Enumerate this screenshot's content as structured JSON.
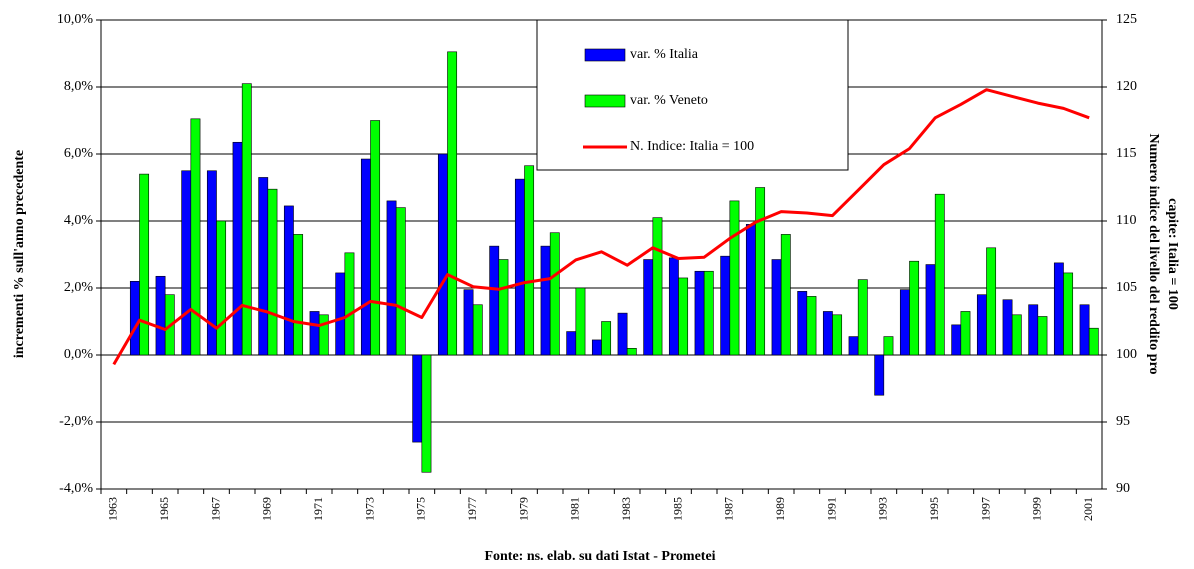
{
  "chart_data": {
    "type": "bar",
    "ylabel": "incrementi % sull'anno precedente",
    "y2label": [
      "Numero indice del livello del reddito pro",
      "capite: Italia = 100"
    ],
    "source": "Fonte: ns. elab. su dati Istat - Prometei",
    "categories": [
      "1963",
      null,
      "1965",
      null,
      "1967",
      null,
      "1969",
      null,
      "1971",
      null,
      "1973",
      null,
      "1975",
      null,
      "1977",
      null,
      "1979",
      null,
      "1981",
      null,
      "1983",
      null,
      "1985",
      null,
      "1987",
      null,
      "1989",
      null,
      "1991",
      null,
      "1993",
      null,
      "1995",
      null,
      "1997",
      null,
      "1999",
      null,
      "2001"
    ],
    "series": [
      {
        "name": "var. % Italia",
        "color": "#0000ff",
        "values": [
          null,
          2.2,
          2.35,
          5.5,
          5.5,
          6.35,
          5.3,
          4.45,
          1.3,
          2.45,
          5.85,
          4.6,
          -2.6,
          6.0,
          1.95,
          3.25,
          5.25,
          3.25,
          0.7,
          0.45,
          1.25,
          2.85,
          2.9,
          2.5,
          2.95,
          3.9,
          2.85,
          1.9,
          1.3,
          0.55,
          -1.2,
          1.95,
          2.7,
          0.9,
          1.8,
          1.65,
          1.5,
          2.75,
          1.5
        ]
      },
      {
        "name": "var. % Veneto",
        "color": "#00ff00",
        "values": [
          null,
          5.4,
          1.8,
          7.05,
          4.0,
          8.1,
          4.95,
          3.6,
          1.2,
          3.05,
          7.0,
          4.4,
          -3.5,
          9.05,
          1.5,
          2.85,
          5.65,
          3.65,
          2.0,
          1.0,
          0.2,
          4.1,
          2.3,
          2.5,
          4.6,
          5.0,
          3.6,
          1.75,
          1.2,
          2.25,
          0.55,
          2.8,
          4.8,
          1.3,
          3.2,
          1.2,
          1.15,
          2.45,
          0.8
        ]
      },
      {
        "name": "N. Indice: Italia = 100",
        "color": "#ff0000",
        "type": "line",
        "axis": "y2",
        "values": [
          99.3,
          102.6,
          101.9,
          103.4,
          102.0,
          103.7,
          103.2,
          102.5,
          102.2,
          102.8,
          104.0,
          103.7,
          102.8,
          106.0,
          105.1,
          104.9,
          105.4,
          105.7,
          107.1,
          107.7,
          106.7,
          108.0,
          107.2,
          107.3,
          108.7,
          109.9,
          110.7,
          110.6,
          110.4,
          112.3,
          114.2,
          115.4,
          117.7,
          118.7,
          119.8,
          119.3,
          118.8,
          118.4,
          117.7
        ]
      }
    ],
    "ylim": [
      -4,
      10
    ],
    "yticks": [
      {
        "value": -4,
        "label": "-4,0%"
      },
      {
        "value": -2,
        "label": "-2,0%"
      },
      {
        "value": 0,
        "label": "0,0%"
      },
      {
        "value": 2,
        "label": "2,0%"
      },
      {
        "value": 4,
        "label": "4,0%"
      },
      {
        "value": 6,
        "label": "6,0%"
      },
      {
        "value": 8,
        "label": "8,0%"
      },
      {
        "value": 10,
        "label": "10,0%"
      }
    ],
    "y2lim": [
      90,
      125
    ],
    "y2ticks": [
      90,
      95,
      100,
      105,
      110,
      115,
      120,
      125
    ],
    "grid": true
  }
}
